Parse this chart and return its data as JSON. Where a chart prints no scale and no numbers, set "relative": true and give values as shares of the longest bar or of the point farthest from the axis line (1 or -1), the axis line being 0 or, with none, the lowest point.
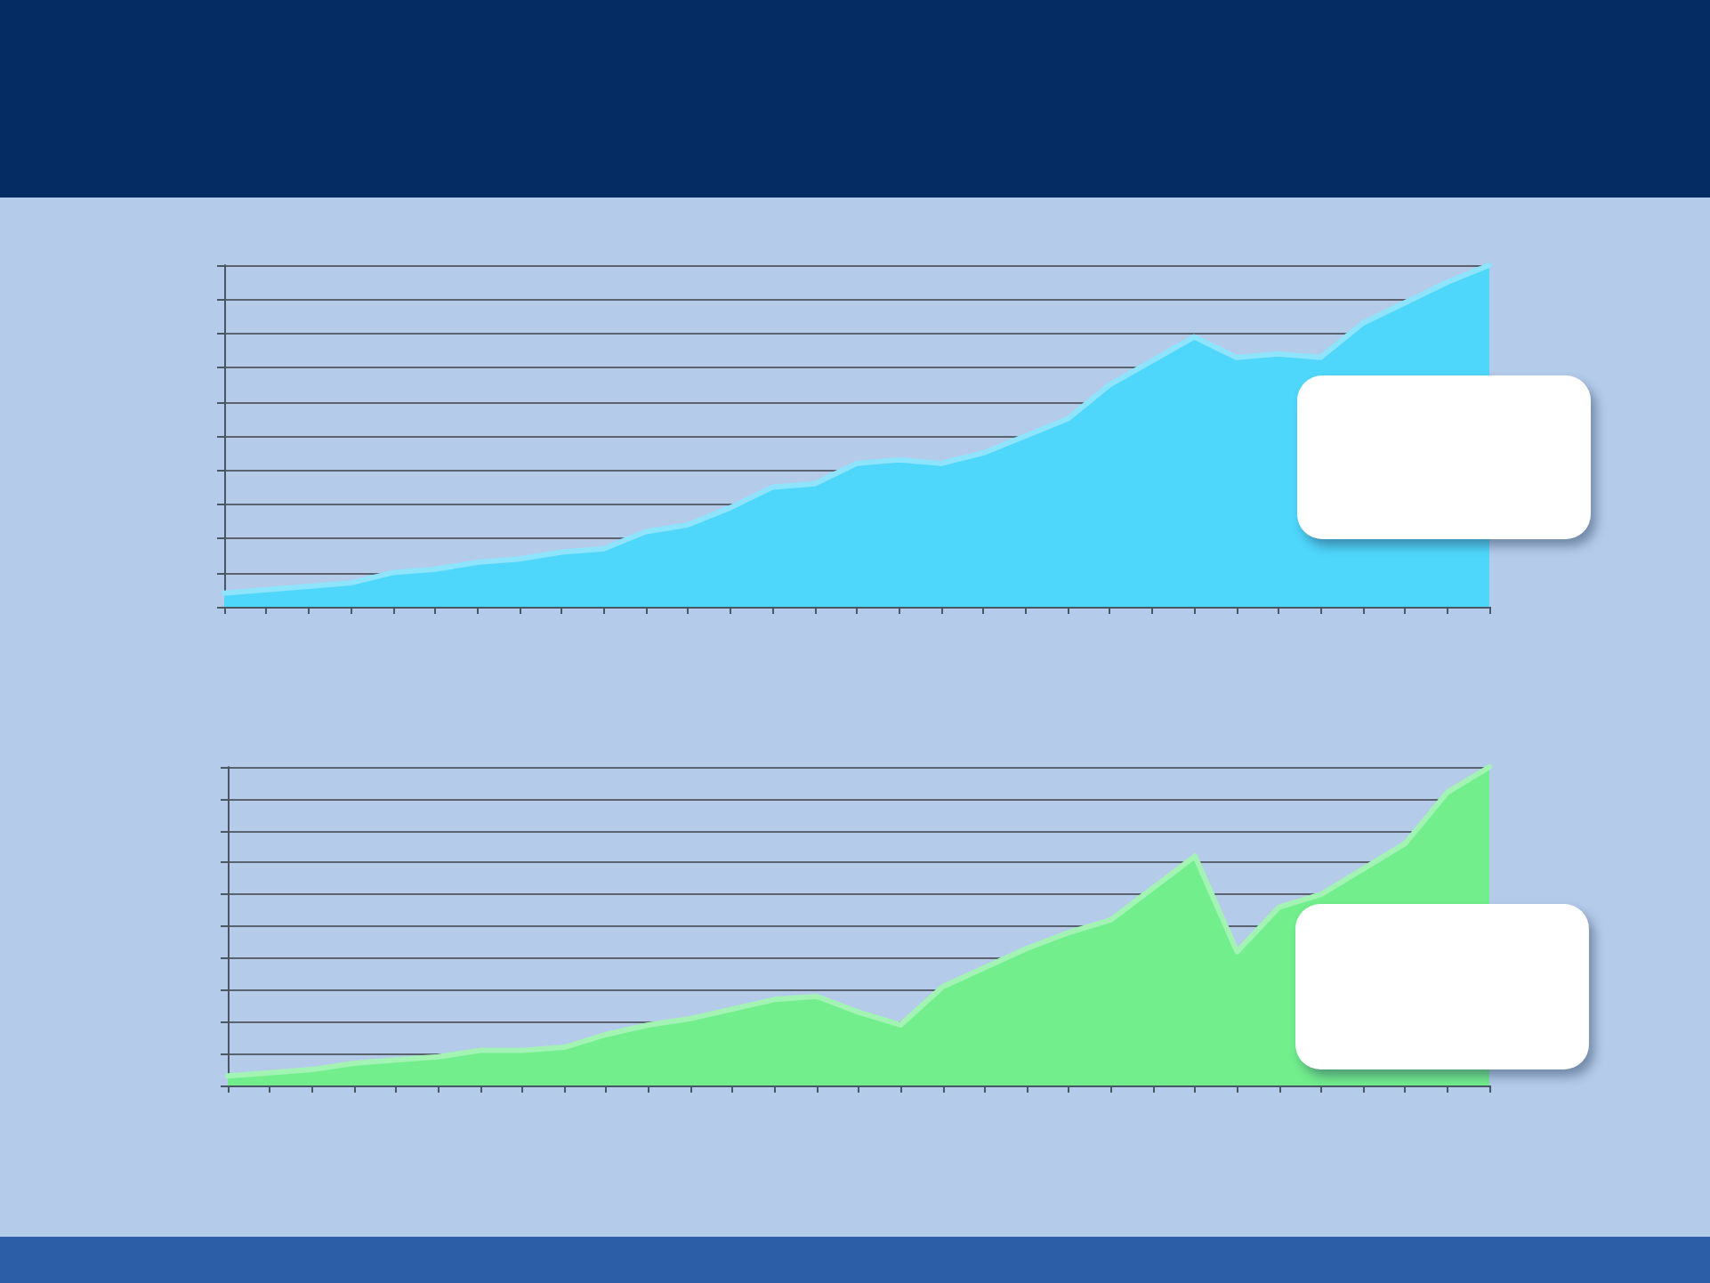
{
  "chart_data": [
    {
      "type": "area",
      "categories": [
        null,
        null,
        null,
        null,
        null,
        null,
        null,
        null,
        null,
        null,
        null,
        null,
        null,
        null,
        null,
        null,
        null,
        null,
        null,
        null,
        null,
        null,
        null,
        null,
        null,
        null,
        null,
        null,
        null,
        null,
        null
      ],
      "values": [
        0.04,
        0.05,
        0.06,
        0.07,
        0.1,
        0.11,
        0.13,
        0.14,
        0.16,
        0.17,
        0.22,
        0.24,
        0.29,
        0.35,
        0.36,
        0.42,
        0.43,
        0.42,
        0.45,
        0.5,
        0.55,
        0.65,
        0.72,
        0.79,
        0.73,
        0.74,
        0.73,
        0.83,
        0.89,
        0.95,
        1.0
      ],
      "color": "#4fd6fb",
      "relative": true,
      "grid": "y"
    },
    {
      "type": "area",
      "categories": [
        null,
        null,
        null,
        null,
        null,
        null,
        null,
        null,
        null,
        null,
        null,
        null,
        null,
        null,
        null,
        null,
        null,
        null,
        null,
        null,
        null,
        null,
        null,
        null,
        null,
        null,
        null,
        null,
        null,
        null,
        null
      ],
      "values": [
        0.03,
        0.04,
        0.05,
        0.07,
        0.08,
        0.09,
        0.11,
        0.11,
        0.12,
        0.16,
        0.19,
        0.21,
        0.24,
        0.27,
        0.28,
        0.23,
        0.19,
        0.31,
        0.37,
        0.43,
        0.48,
        0.52,
        0.62,
        0.72,
        0.42,
        0.56,
        0.6,
        0.68,
        0.76,
        0.92,
        1.0
      ],
      "color": "#72ee8c",
      "relative": true,
      "grid": "y"
    }
  ]
}
